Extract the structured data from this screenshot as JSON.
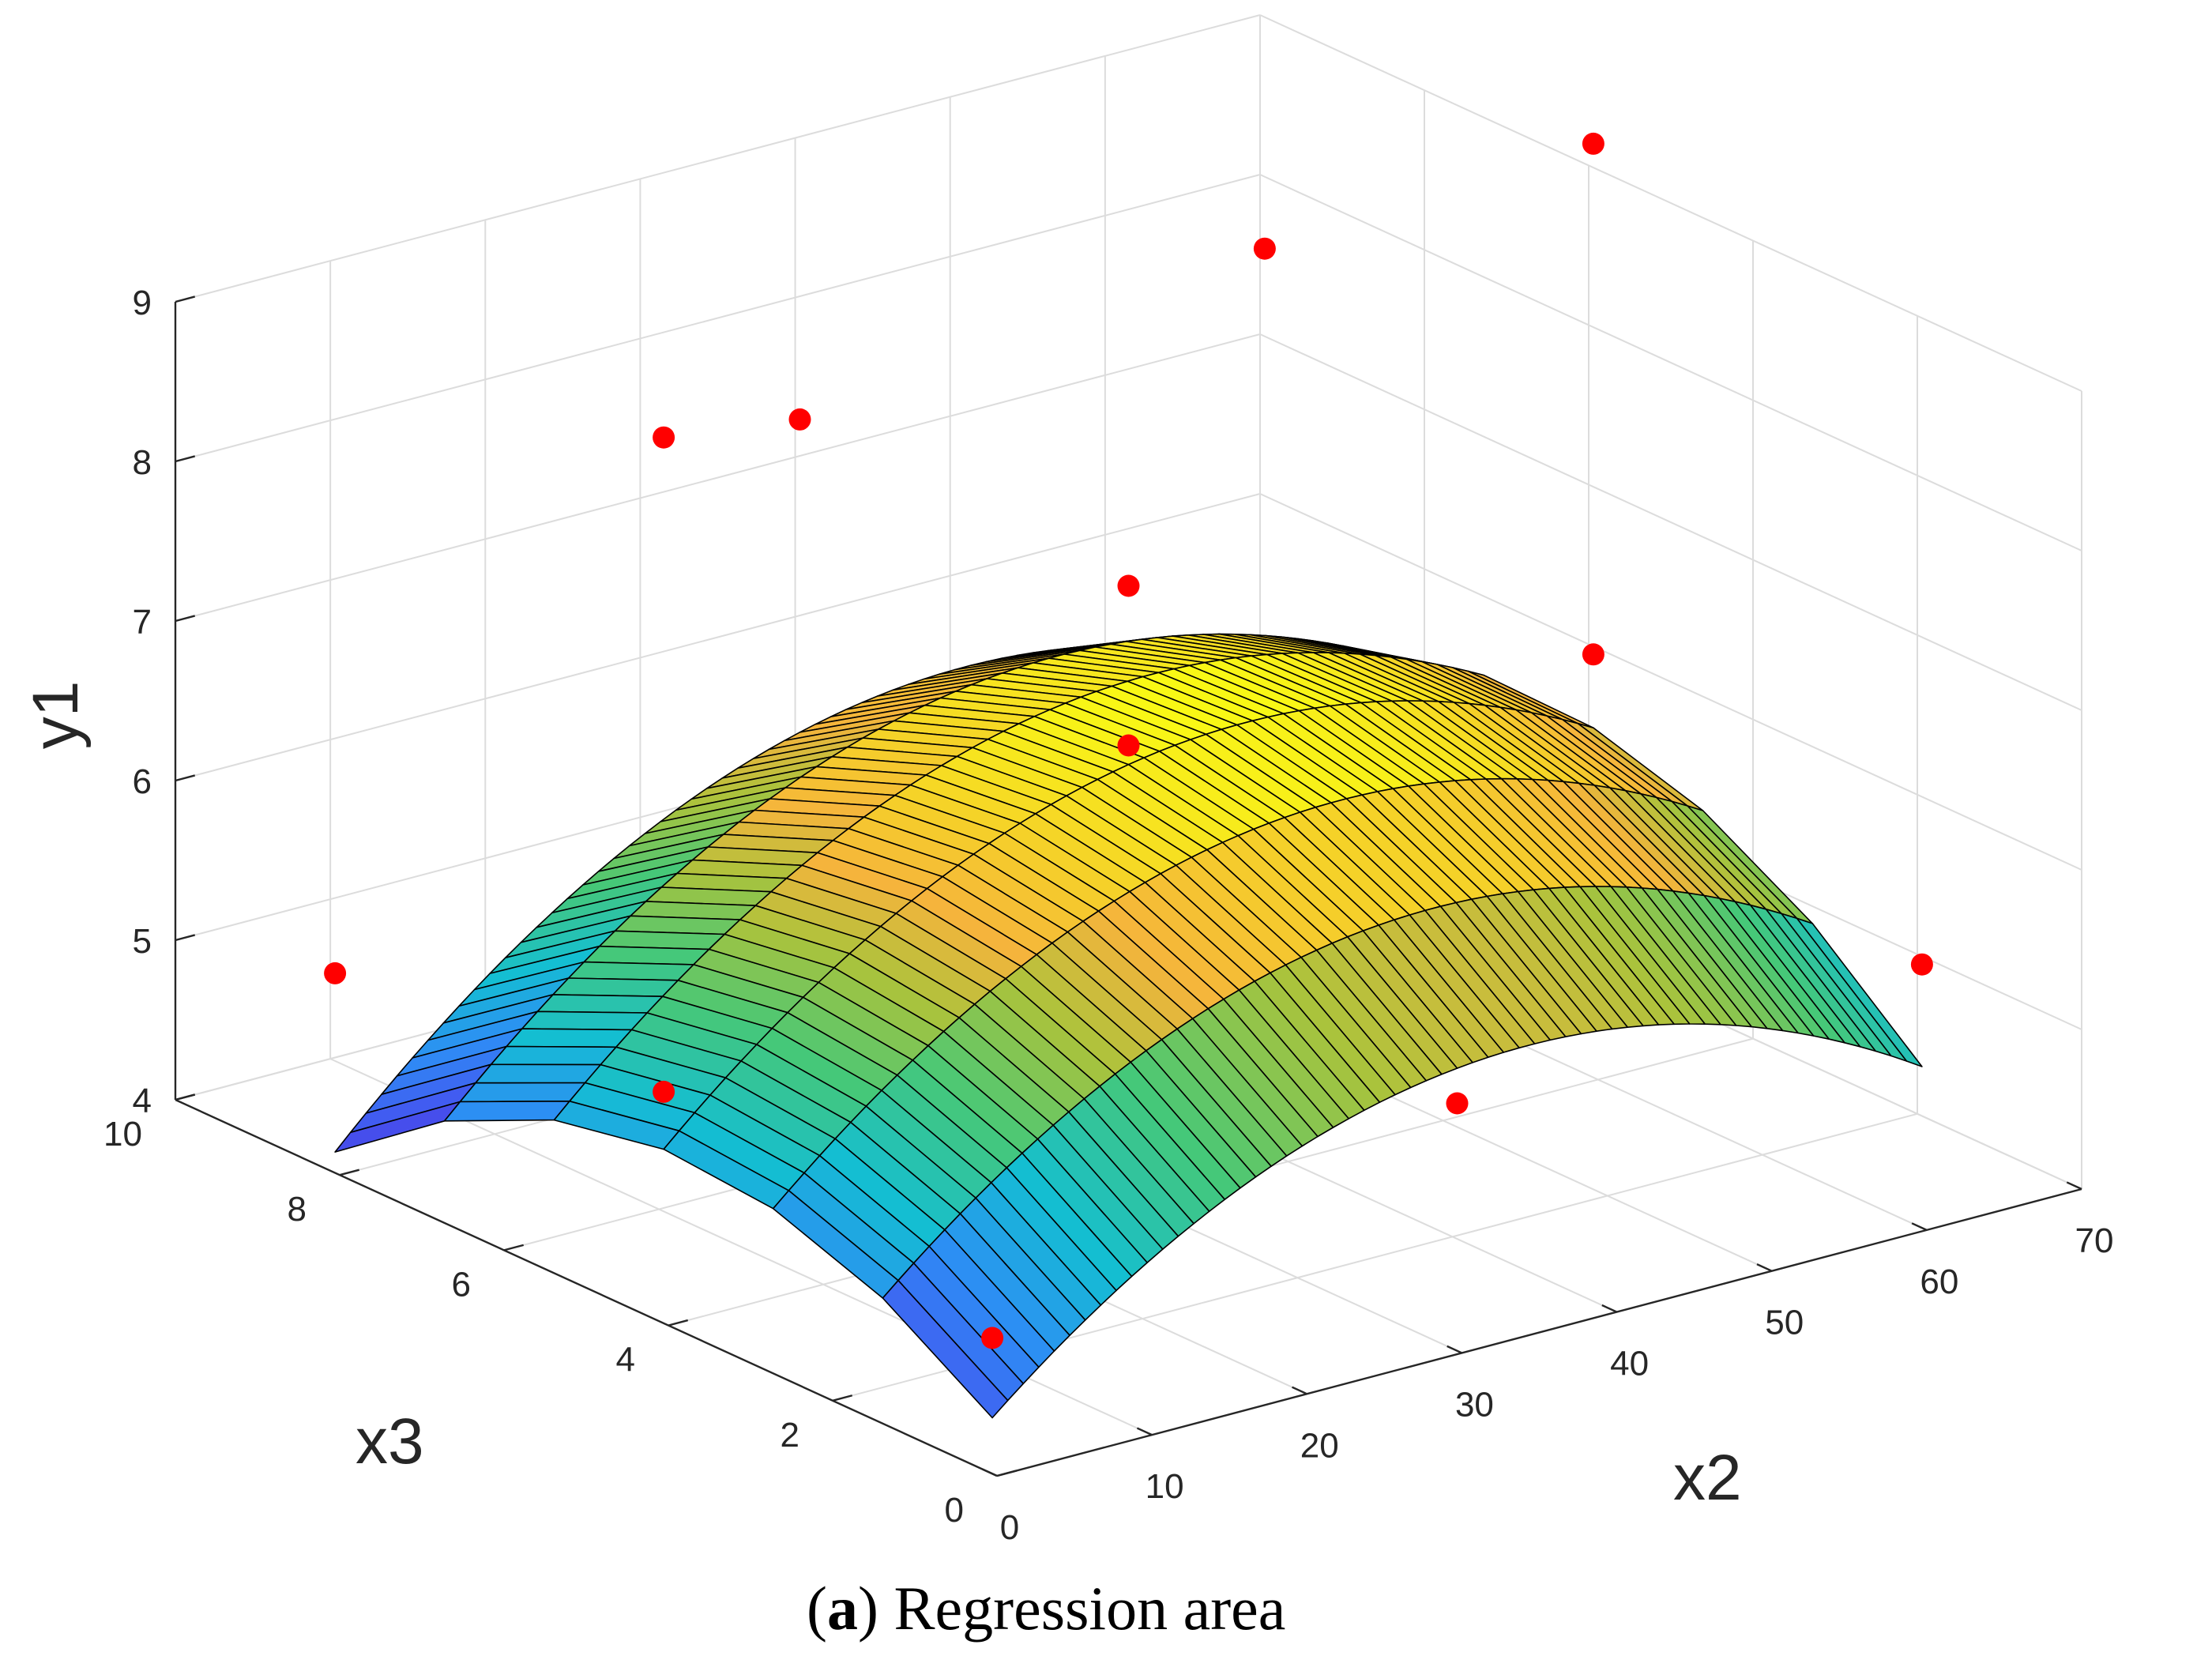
{
  "chart_data": {
    "type": "surface3d",
    "title": "",
    "xlabel": "x2",
    "ylabel": "x3",
    "zlabel": "y1",
    "xlim": [
      0,
      70
    ],
    "ylim": [
      0,
      10
    ],
    "zlim": [
      4,
      9
    ],
    "xticks": [
      "0",
      "10",
      "20",
      "30",
      "40",
      "50",
      "60",
      "70"
    ],
    "yticks": [
      "0",
      "2",
      "4",
      "6",
      "8",
      "10"
    ],
    "zticks": [
      "4",
      "5",
      "6",
      "7",
      "8",
      "9"
    ],
    "grid": true,
    "colormap": "parula",
    "surface": {
      "x_range": [
        5,
        65
      ],
      "y_range": [
        1,
        9
      ],
      "x_steps": 60,
      "y_steps": 6,
      "model": "y1 = 6.38 + 0.55*u + 0.11*v - 1.09*u^2 - 0.85*v^2 + 0.22*u*v; u=(x2-35)/30, v=(x3-5)/4"
    },
    "points": [
      {
        "x2": 5,
        "x3": 1,
        "y1": 4.5
      },
      {
        "x2": 35,
        "x3": 1,
        "y1": 5.2
      },
      {
        "x2": 65,
        "x3": 1,
        "y1": 5.3
      },
      {
        "x2": 5,
        "x3": 5,
        "y1": 5.1
      },
      {
        "x2": 65,
        "x3": 5,
        "y1": 6.3
      },
      {
        "x2": 35,
        "x3": 5,
        "y1": 6.5
      },
      {
        "x2": 35,
        "x3": 5,
        "y1": 7.5
      },
      {
        "x2": 5,
        "x3": 9,
        "y1": 4.9
      },
      {
        "x2": 35,
        "x3": 9,
        "y1": 7.6
      },
      {
        "x2": 65,
        "x3": 9,
        "y1": 7.9
      },
      {
        "x2": 5,
        "x3": 5,
        "y1": 9.2
      },
      {
        "x2": 65,
        "x3": 5,
        "y1": 9.5
      }
    ],
    "point_color": "#ff0000"
  },
  "caption": {
    "letter": "a",
    "text": " Regression area"
  }
}
